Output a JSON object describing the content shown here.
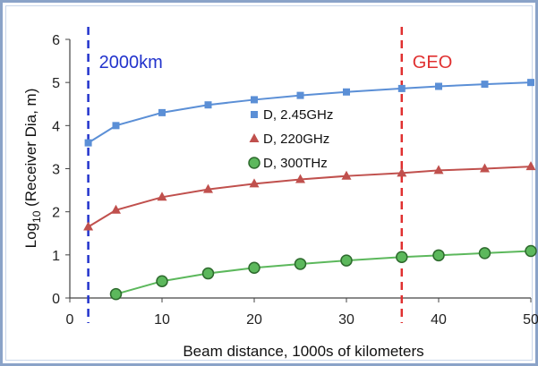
{
  "chart_data": {
    "type": "line",
    "xlabel": "Beam distance, 1000s of kilometers",
    "ylabel_main": "Log",
    "ylabel_sub": "10",
    "ylabel_rest": " (Receiver Dia, m)",
    "xlim": [
      0,
      50
    ],
    "ylim": [
      0,
      6
    ],
    "xticks": [
      0,
      10,
      20,
      30,
      40,
      50
    ],
    "yticks": [
      0,
      1,
      2,
      3,
      4,
      5,
      6
    ],
    "grid": false,
    "legend_position": "center",
    "series": [
      {
        "name": "D, 2.45GHz",
        "color": "#5b8fd6",
        "marker": "square",
        "x": [
          2,
          5,
          10,
          15,
          20,
          25,
          30,
          36,
          40,
          45,
          50
        ],
        "y": [
          3.6,
          4.0,
          4.3,
          4.48,
          4.6,
          4.7,
          4.78,
          4.86,
          4.91,
          4.96,
          5.0
        ]
      },
      {
        "name": "D, 220GHz",
        "color": "#c0504d",
        "marker": "triangle",
        "x": [
          2,
          5,
          10,
          15,
          20,
          25,
          30,
          36,
          40,
          45,
          50
        ],
        "y": [
          1.65,
          2.04,
          2.34,
          2.52,
          2.65,
          2.75,
          2.83,
          2.9,
          2.96,
          3.0,
          3.05
        ]
      },
      {
        "name": "D, 300THz",
        "color": "#5cb85c",
        "marker": "circle",
        "x": [
          5,
          10,
          15,
          20,
          25,
          30,
          36,
          40,
          45,
          50
        ],
        "y": [
          0.09,
          0.39,
          0.57,
          0.7,
          0.79,
          0.87,
          0.95,
          0.99,
          1.04,
          1.09
        ]
      }
    ],
    "annotations": [
      {
        "text": "2000km",
        "x": 2,
        "color": "#2233cc"
      },
      {
        "text": "GEO",
        "x": 36,
        "color": "#e03030"
      }
    ]
  }
}
